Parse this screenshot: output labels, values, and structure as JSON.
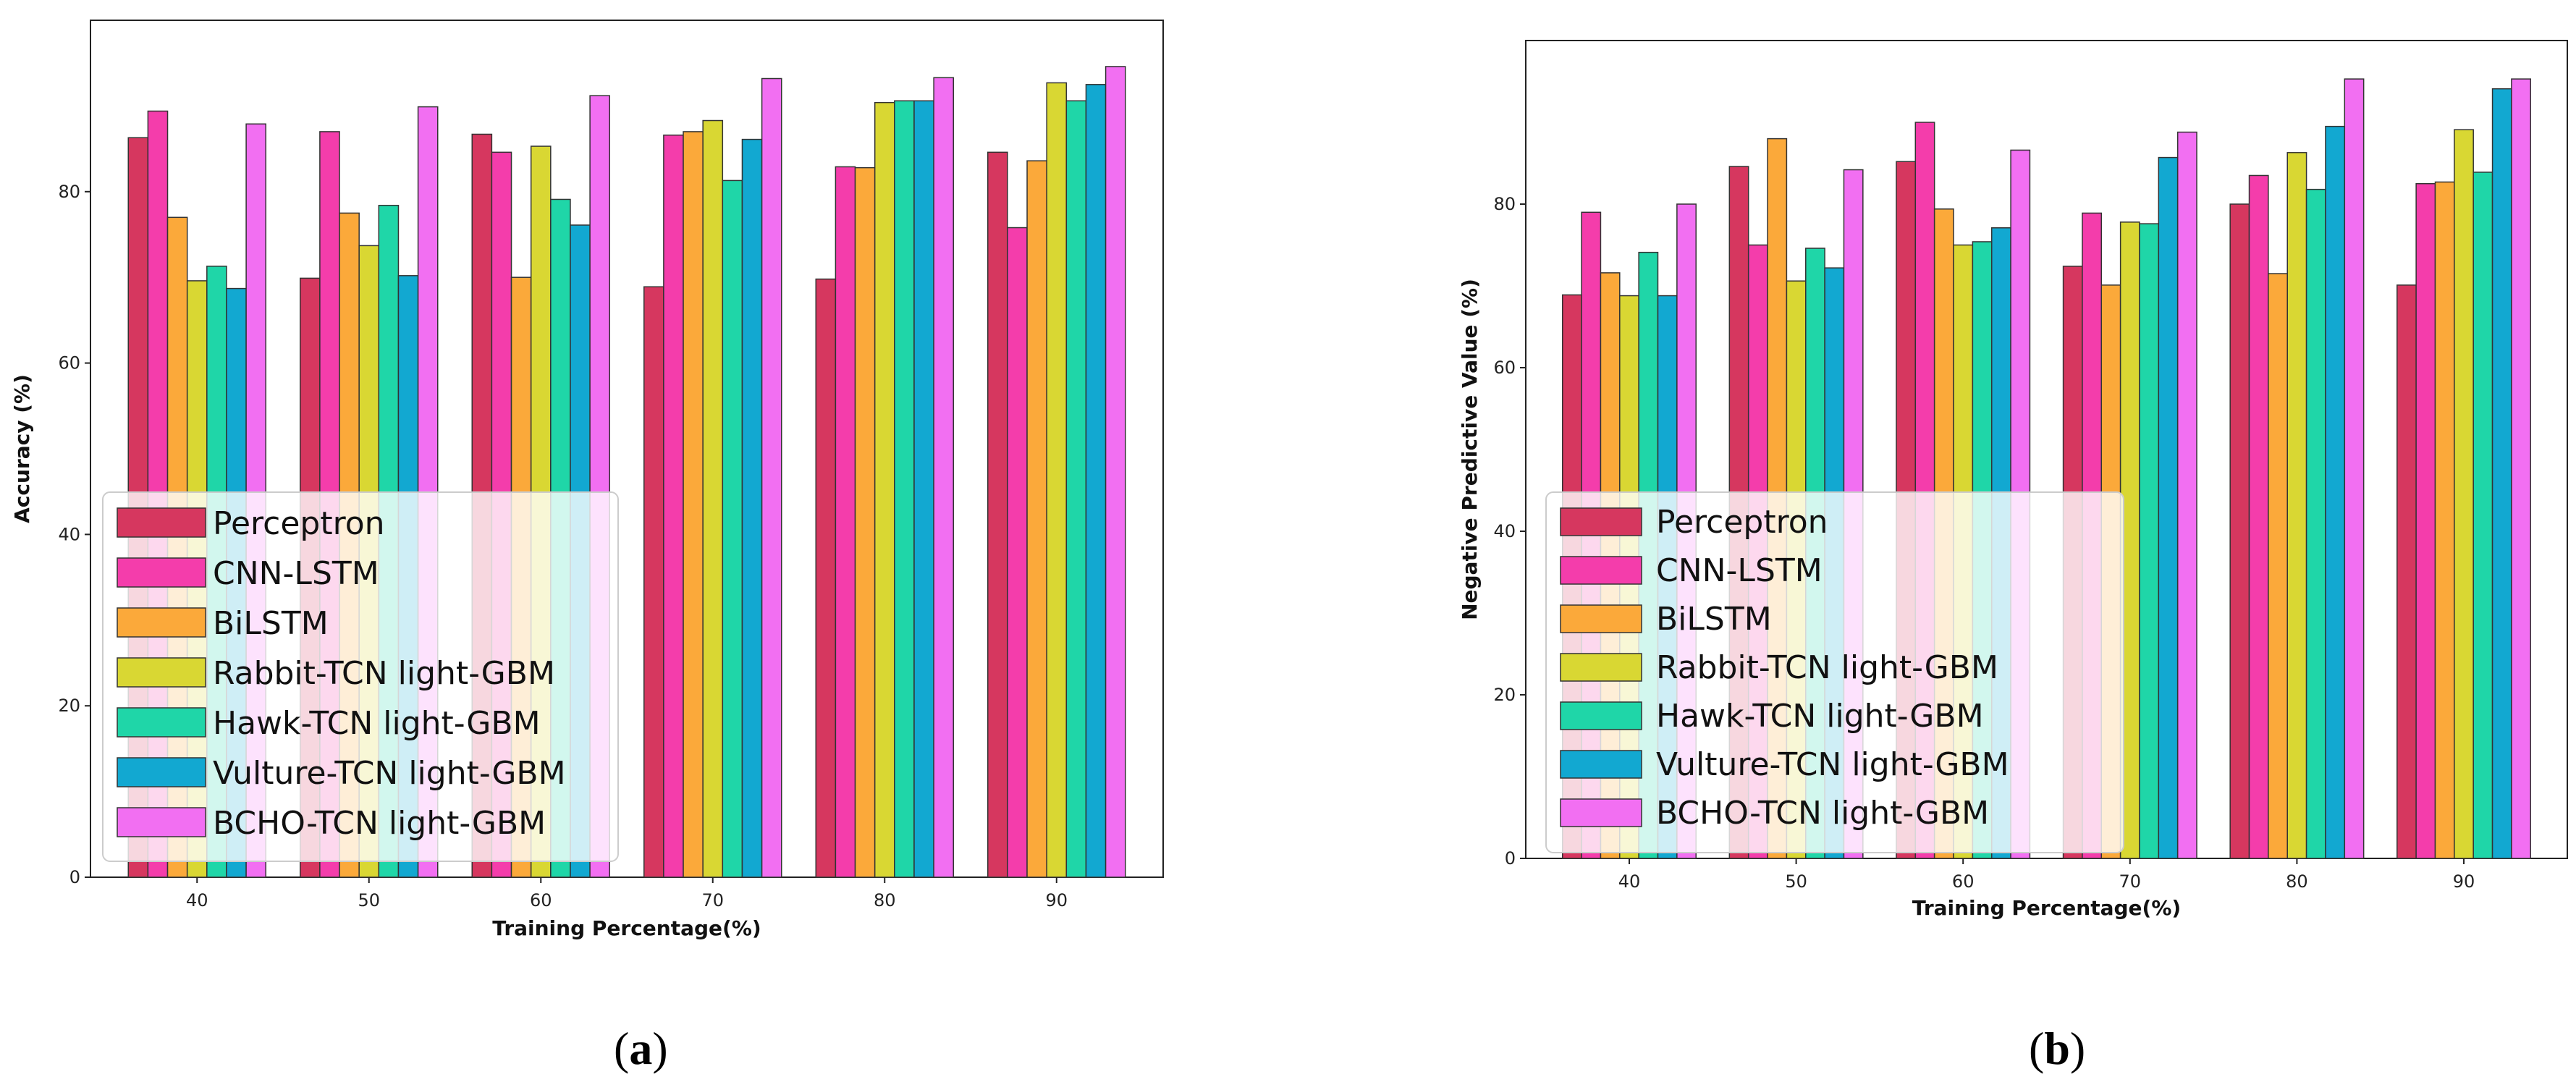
{
  "series_colors": [
    "#d6375f",
    "#f43dab",
    "#fba93a",
    "#d9d733",
    "#1fd6a8",
    "#12a8d1",
    "#f26ff2"
  ],
  "chart_data": [
    {
      "type": "bar",
      "panel_label": "a",
      "xlabel": "Training Percentage(%)",
      "ylabel": "Accuracy (%)",
      "ylim": [
        0,
        100
      ],
      "yticks": [
        0,
        20,
        40,
        60,
        80
      ],
      "categories": [
        "40",
        "50",
        "60",
        "70",
        "80",
        "90"
      ],
      "legend_position": "lower-left",
      "series": [
        {
          "name": "Perceptron",
          "values": [
            86.3,
            69.9,
            86.7,
            68.9,
            69.8,
            84.6
          ]
        },
        {
          "name": "CNN-LSTM",
          "values": [
            89.4,
            87.0,
            84.6,
            86.6,
            82.9,
            75.8
          ]
        },
        {
          "name": "BiLSTM",
          "values": [
            77.0,
            77.5,
            70.0,
            87.0,
            82.8,
            83.6
          ]
        },
        {
          "name": "Rabbit-TCN light-GBM",
          "values": [
            69.6,
            73.7,
            85.3,
            88.3,
            90.4,
            92.7
          ]
        },
        {
          "name": "Hawk-TCN light-GBM",
          "values": [
            71.3,
            78.4,
            79.1,
            81.3,
            90.6,
            90.6
          ]
        },
        {
          "name": "Vulture-TCN light-GBM",
          "values": [
            68.7,
            70.2,
            76.1,
            86.1,
            90.6,
            92.5
          ]
        },
        {
          "name": "BCHO-TCN light-GBM",
          "values": [
            87.9,
            89.9,
            91.2,
            93.2,
            93.3,
            94.6
          ]
        }
      ]
    },
    {
      "type": "bar",
      "panel_label": "b",
      "xlabel": "Training Percentage(%)",
      "ylabel": "Negative Predictive Value (%)",
      "ylim": [
        0,
        100
      ],
      "yticks": [
        0,
        20,
        40,
        60,
        80
      ],
      "categories": [
        "40",
        "50",
        "60",
        "70",
        "80",
        "90"
      ],
      "legend_position": "lower-left",
      "series": [
        {
          "name": "Perceptron",
          "values": [
            68.9,
            84.6,
            85.2,
            72.4,
            80.0,
            70.1
          ]
        },
        {
          "name": "CNN-LSTM",
          "values": [
            79.0,
            75.0,
            90.0,
            78.9,
            83.5,
            82.5
          ]
        },
        {
          "name": "BiLSTM",
          "values": [
            71.6,
            88.0,
            79.4,
            70.1,
            71.5,
            82.7
          ]
        },
        {
          "name": "Rabbit-TCN light-GBM",
          "values": [
            68.8,
            70.6,
            75.0,
            77.8,
            86.3,
            89.1
          ]
        },
        {
          "name": "Hawk-TCN light-GBM",
          "values": [
            74.1,
            74.6,
            75.4,
            77.6,
            81.8,
            83.9
          ]
        },
        {
          "name": "Vulture-TCN light-GBM",
          "values": [
            68.8,
            72.2,
            77.1,
            85.7,
            89.5,
            94.1
          ]
        },
        {
          "name": "BCHO-TCN light-GBM",
          "values": [
            80.0,
            84.2,
            86.6,
            88.8,
            95.3,
            95.3
          ]
        }
      ]
    }
  ]
}
